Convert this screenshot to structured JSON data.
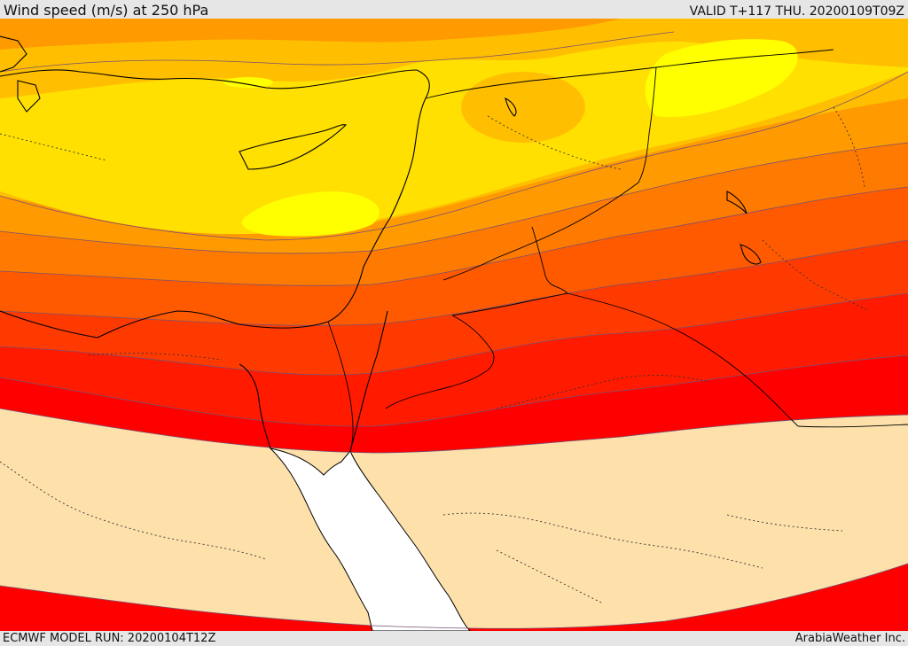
{
  "header": {
    "title": "Wind speed (m/s) at 250 hPa",
    "valid": "VALID T+117 THU. 20200109T09Z"
  },
  "footer": {
    "model_run": "ECMWF MODEL RUN: 20200104T12Z",
    "credit": "ArabiaWeather Inc."
  },
  "map": {
    "field": "wind speed at 250 hPa",
    "region": "Eastern Mediterranean, Levant, Sinai and northern Red Sea",
    "shading_colors": {
      "lightest": "#ffff00",
      "light": "#ffe000",
      "mid_light": "#ffbf00",
      "mid": "#ff9a00",
      "orange": "#ff7a00",
      "dark_orange": "#ff5a00",
      "red_orange": "#ff3a00",
      "red": "#ff1a00",
      "pure_red": "#ff0000",
      "below_threshold": "#fde0aa",
      "water_unshaded": "#ffffff"
    },
    "lines": {
      "coastline": "#000000",
      "borders_dotted": "#333333",
      "contour": "#7a5070"
    }
  }
}
